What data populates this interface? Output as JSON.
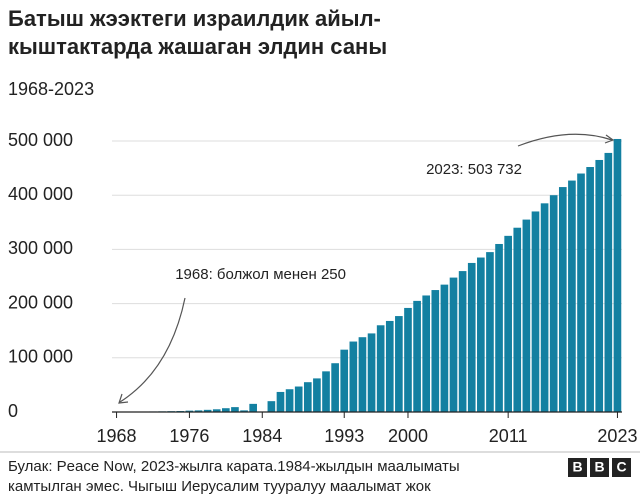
{
  "chart_data": {
    "type": "bar",
    "title": [
      "Батыш жээктеги израилдик айыл-",
      "кыштактарда жашаган элдин саны"
    ],
    "subtitle": "1968-2023",
    "categories": [
      "1968",
      null,
      null,
      null,
      null,
      null,
      null,
      null,
      "1976",
      null,
      null,
      null,
      null,
      null,
      null,
      null,
      "1984",
      null,
      null,
      null,
      null,
      null,
      null,
      null,
      null,
      "1993",
      null,
      null,
      null,
      null,
      null,
      null,
      "2000",
      null,
      null,
      null,
      null,
      null,
      null,
      null,
      null,
      null,
      null,
      "2011",
      null,
      null,
      null,
      null,
      null,
      null,
      null,
      null,
      null,
      null,
      null,
      "2023"
    ],
    "values": [
      250,
      400,
      600,
      800,
      1000,
      1200,
      1500,
      1800,
      2500,
      3000,
      4000,
      5000,
      7000,
      9000,
      3000,
      15000,
      null,
      20000,
      37000,
      42000,
      47000,
      55000,
      62000,
      75000,
      90000,
      115000,
      130000,
      138000,
      145000,
      160000,
      168000,
      177000,
      192000,
      205000,
      215000,
      225000,
      235000,
      248000,
      260000,
      275000,
      285000,
      295000,
      310000,
      325000,
      340000,
      355000,
      370000,
      385000,
      400000,
      415000,
      427000,
      440000,
      452000,
      465000,
      478000,
      503732
    ],
    "color": "#1380a1",
    "ylim": [
      0,
      500000
    ],
    "yticks": [
      0,
      {
        "value": 100000,
        "label": "100 000"
      },
      {
        "value": 200000,
        "label": "200 000"
      },
      {
        "value": 300000,
        "label": "300 000"
      },
      {
        "value": 400000,
        "label": "400 000"
      },
      {
        "value": 500000,
        "label": "500 000"
      }
    ],
    "grid": true,
    "annotations": [
      "2023: 503 732",
      "1968: болжол менен 250"
    ],
    "source": [
      "Булак: Peace Now, 2023-жылга карата.1984-жылдын маалыматы",
      "камтылган эмес. Чыгыш Иерусалим тууралуу маалымат жок"
    ],
    "logo": [
      "B",
      "B",
      "C"
    ]
  }
}
